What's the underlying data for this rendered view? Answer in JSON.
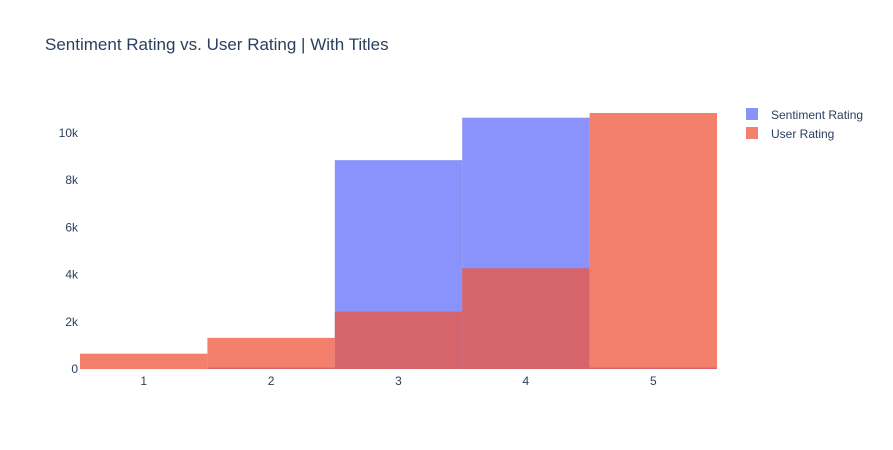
{
  "chart_data": {
    "type": "bar",
    "barmode": "overlay",
    "title": "Sentiment Rating vs. User Rating | With Titles",
    "xlabel": "",
    "ylabel": "",
    "categories": [
      "1",
      "2",
      "3",
      "4",
      "5"
    ],
    "ylim": [
      0,
      11400
    ],
    "yticks": [
      0,
      2000,
      4000,
      6000,
      8000,
      10000
    ],
    "ytick_labels": [
      "0",
      "2k",
      "4k",
      "6k",
      "8k",
      "10k"
    ],
    "grid": false,
    "legend_position": "top-right",
    "series": [
      {
        "name": "Sentiment Rating",
        "color": "#636efa",
        "opacity": 0.75,
        "values": [
          5,
          60,
          8850,
          10650,
          60
        ]
      },
      {
        "name": "User Rating",
        "color": "#ef553b",
        "opacity": 0.75,
        "values": [
          650,
          1320,
          2430,
          4270,
          10850
        ]
      }
    ]
  }
}
